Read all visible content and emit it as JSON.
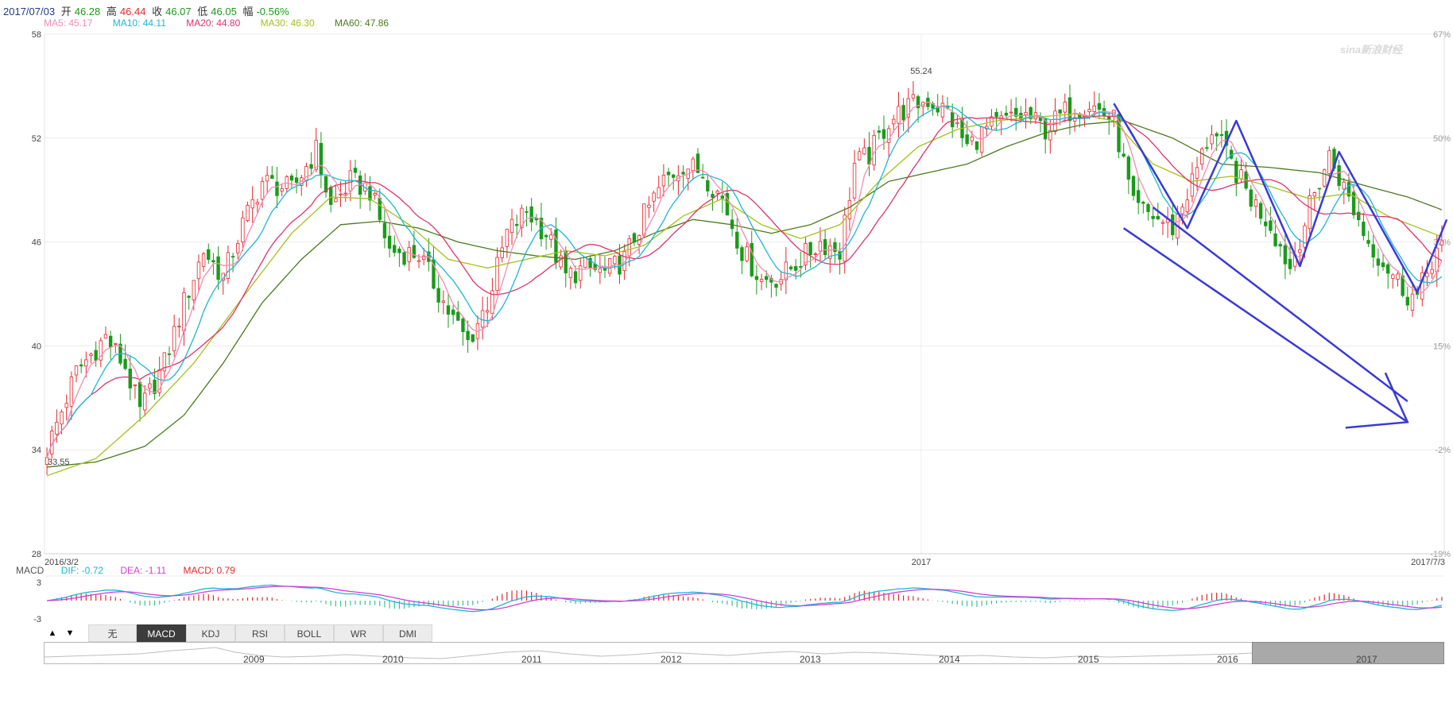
{
  "header": {
    "date": "2017/07/03",
    "open_label": "开",
    "open": "46.28",
    "high_label": "高",
    "high": "46.44",
    "close_label": "收",
    "close": "46.07",
    "low_label": "低",
    "low": "46.05",
    "change_label": "幅",
    "change": "-0.56%"
  },
  "colors": {
    "up": "#e8262b",
    "down": "#1a9a1a",
    "ma5": "#f08cb4",
    "ma10": "#1cb6d6",
    "ma20": "#e0336a",
    "ma30": "#a1c21a",
    "ma60": "#4b7a1e",
    "dif": "#1cb6d6",
    "dea": "#d33fd3",
    "annotation": "#3a3ad6"
  },
  "ma_legend": [
    {
      "label": "MA5: 45.17"
    },
    {
      "label": "MA10: 44.11"
    },
    {
      "label": "MA20: 44.80"
    },
    {
      "label": "MA30: 46.30"
    },
    {
      "label": "MA60: 47.86"
    }
  ],
  "macd_legend": {
    "name": "MACD",
    "dif": "DIF: -0.72",
    "dea": "DEA: -1.11",
    "macd": "MACD: 0.79"
  },
  "indicator_tabs": [
    "无",
    "MACD",
    "KDJ",
    "RSI",
    "BOLL",
    "WR",
    "DMI"
  ],
  "active_tab": "MACD",
  "navigator_years": [
    "2009",
    "2010",
    "2011",
    "2012",
    "2013",
    "2014",
    "2015",
    "2016",
    "2017"
  ],
  "logo_text": "sina新浪财经",
  "chart_data": [
    {
      "type": "candlestick",
      "title": "",
      "ylim": [
        28,
        58
      ],
      "y_ticks": [
        "58",
        "52",
        "46",
        "40",
        "34",
        "28"
      ],
      "y2_ticks": [
        "67%",
        "50%",
        "32%",
        "15%",
        "-2%",
        "-19%"
      ],
      "x_labels": [
        "2016/3/2",
        "2017",
        "2017/7/3"
      ],
      "max_label": "55.24",
      "min_label": "33.55",
      "grid": true,
      "price_path": [
        [
          0,
          34.0
        ],
        [
          6,
          38.5
        ],
        [
          12,
          40.5
        ],
        [
          16,
          38.8
        ],
        [
          19,
          36.2
        ],
        [
          24,
          39.0
        ],
        [
          28,
          42.5
        ],
        [
          32,
          45.5
        ],
        [
          36,
          44.0
        ],
        [
          40,
          47.0
        ],
        [
          44,
          49.5
        ],
        [
          50,
          49.0
        ],
        [
          55,
          51.3
        ],
        [
          58,
          48.0
        ],
        [
          62,
          49.5
        ],
        [
          66,
          49.0
        ],
        [
          70,
          45.5
        ],
        [
          76,
          45.3
        ],
        [
          82,
          42.0
        ],
        [
          86,
          40.2
        ],
        [
          90,
          42.5
        ],
        [
          94,
          46.5
        ],
        [
          98,
          47.8
        ],
        [
          102,
          46.5
        ],
        [
          106,
          44.0
        ],
        [
          110,
          44.5
        ],
        [
          114,
          44.2
        ],
        [
          118,
          45.0
        ],
        [
          122,
          47.5
        ],
        [
          126,
          49.5
        ],
        [
          130,
          50.5
        ],
        [
          134,
          50.0
        ],
        [
          138,
          48.5
        ],
        [
          142,
          45.5
        ],
        [
          146,
          43.8
        ],
        [
          150,
          44.0
        ],
        [
          154,
          45.0
        ],
        [
          158,
          46.0
        ],
        [
          162,
          45.5
        ],
        [
          165,
          50.5
        ],
        [
          168,
          51.0
        ],
        [
          172,
          53.0
        ],
        [
          176,
          53.8
        ],
        [
          180,
          54.2
        ],
        [
          184,
          53.5
        ],
        [
          188,
          51.5
        ],
        [
          192,
          52.5
        ],
        [
          196,
          53.0
        ],
        [
          200,
          53.3
        ],
        [
          204,
          52.5
        ],
        [
          208,
          53.5
        ],
        [
          213,
          54.0
        ],
        [
          218,
          53.0
        ],
        [
          222,
          48.0
        ],
        [
          226,
          47.5
        ],
        [
          230,
          46.8
        ],
        [
          234,
          49.5
        ],
        [
          238,
          52.5
        ],
        [
          242,
          50.5
        ],
        [
          246,
          48.5
        ],
        [
          250,
          47.0
        ],
        [
          254,
          44.5
        ],
        [
          258,
          48.0
        ],
        [
          262,
          51.0
        ],
        [
          266,
          48.5
        ],
        [
          270,
          46.0
        ],
        [
          274,
          44.5
        ],
        [
          278,
          43.0
        ],
        [
          280,
          42.8
        ],
        [
          283,
          45.0
        ],
        [
          285,
          46.1
        ]
      ],
      "ma60_path": [
        [
          0,
          33.0
        ],
        [
          10,
          33.3
        ],
        [
          20,
          34.2
        ],
        [
          28,
          36.0
        ],
        [
          36,
          39.0
        ],
        [
          44,
          42.5
        ],
        [
          52,
          45.0
        ],
        [
          60,
          47.0
        ],
        [
          68,
          47.2
        ],
        [
          76,
          46.8
        ],
        [
          84,
          46.0
        ],
        [
          92,
          45.5
        ],
        [
          100,
          45.2
        ],
        [
          108,
          45.0
        ],
        [
          116,
          45.5
        ],
        [
          124,
          46.5
        ],
        [
          132,
          47.3
        ],
        [
          140,
          47.0
        ],
        [
          148,
          46.5
        ],
        [
          156,
          47.0
        ],
        [
          164,
          48.0
        ],
        [
          172,
          49.5
        ],
        [
          180,
          50.0
        ],
        [
          188,
          50.5
        ],
        [
          196,
          51.5
        ],
        [
          204,
          52.3
        ],
        [
          212,
          52.8
        ],
        [
          220,
          53.0
        ],
        [
          230,
          52.0
        ],
        [
          240,
          50.5
        ],
        [
          250,
          50.3
        ],
        [
          260,
          50.0
        ],
        [
          270,
          49.2
        ],
        [
          278,
          48.6
        ],
        [
          285,
          47.86
        ]
      ],
      "ma30_path": [
        [
          0,
          32.5
        ],
        [
          10,
          33.5
        ],
        [
          20,
          36.0
        ],
        [
          30,
          39.0
        ],
        [
          40,
          42.8
        ],
        [
          50,
          46.5
        ],
        [
          58,
          48.6
        ],
        [
          66,
          48.5
        ],
        [
          74,
          47.0
        ],
        [
          82,
          45.0
        ],
        [
          90,
          44.5
        ],
        [
          98,
          45.0
        ],
        [
          106,
          45.5
        ],
        [
          114,
          45.2
        ],
        [
          122,
          45.8
        ],
        [
          130,
          47.5
        ],
        [
          138,
          48.5
        ],
        [
          146,
          47.0
        ],
        [
          154,
          46.2
        ],
        [
          162,
          47.0
        ],
        [
          170,
          49.5
        ],
        [
          178,
          51.5
        ],
        [
          186,
          52.5
        ],
        [
          194,
          53.0
        ],
        [
          202,
          53.2
        ],
        [
          210,
          53.4
        ],
        [
          218,
          53.0
        ],
        [
          226,
          50.5
        ],
        [
          234,
          49.5
        ],
        [
          242,
          49.8
        ],
        [
          250,
          49.2
        ],
        [
          258,
          48.5
        ],
        [
          266,
          48.8
        ],
        [
          274,
          47.5
        ],
        [
          285,
          46.3
        ]
      ],
      "annotations": {
        "zigzag": [
          [
            218,
            54.0
          ],
          [
            233,
            46.8
          ],
          [
            243,
            53.0
          ],
          [
            256,
            44.6
          ],
          [
            264,
            51.2
          ],
          [
            280,
            43.1
          ],
          [
            286,
            47.3
          ]
        ],
        "arrow1": [
          [
            226,
            48.0
          ],
          [
            278,
            36.8
          ]
        ],
        "arrow2": [
          [
            220,
            46.8
          ],
          [
            278,
            35.6
          ]
        ]
      }
    },
    {
      "type": "macd",
      "ylim": [
        -3,
        3
      ],
      "y_ticks": [
        "3",
        "-3"
      ],
      "x_range": [
        0,
        285
      ]
    }
  ]
}
